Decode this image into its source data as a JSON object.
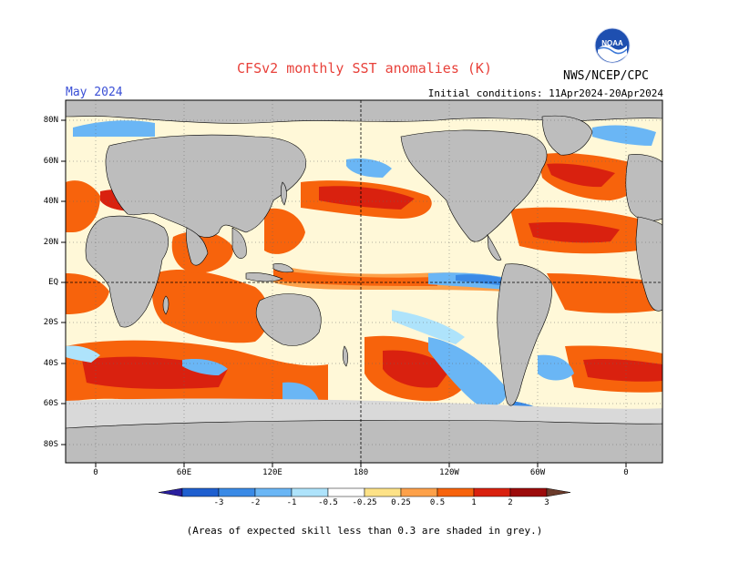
{
  "title": "CFSv2 monthly SST anomalies (K)",
  "valid_month": "May 2024",
  "initial_conditions": "Initial conditions: 11Apr2024-20Apr2024",
  "organization": "NWS/NCEP/CPC",
  "logo_text": "NOAA",
  "lat_labels": [
    "80N",
    "60N",
    "40N",
    "20N",
    "EQ",
    "20S",
    "40S",
    "60S",
    "80S"
  ],
  "lon_labels": [
    "0",
    "60E",
    "120E",
    "180",
    "120W",
    "60W",
    "0"
  ],
  "colorbar": {
    "labels": [
      "-3",
      "-2",
      "-1",
      "-0.5",
      "-0.25",
      "0.25",
      "0.5",
      "1",
      "2",
      "3"
    ],
    "colors": [
      "#2a1f9e",
      "#1f5fcf",
      "#3a8ae6",
      "#6ab6f5",
      "#aee3fb",
      "#ffffff",
      "#fde287",
      "#fda14a",
      "#f7630c",
      "#d9210f",
      "#9c0b0b",
      "#6b3b2b"
    ]
  },
  "land_color": "#bdbdbd",
  "skill_mask_color": "#d9d9d9",
  "footnote": "(Areas of expected skill less than 0.3 are shaded in grey.)"
}
